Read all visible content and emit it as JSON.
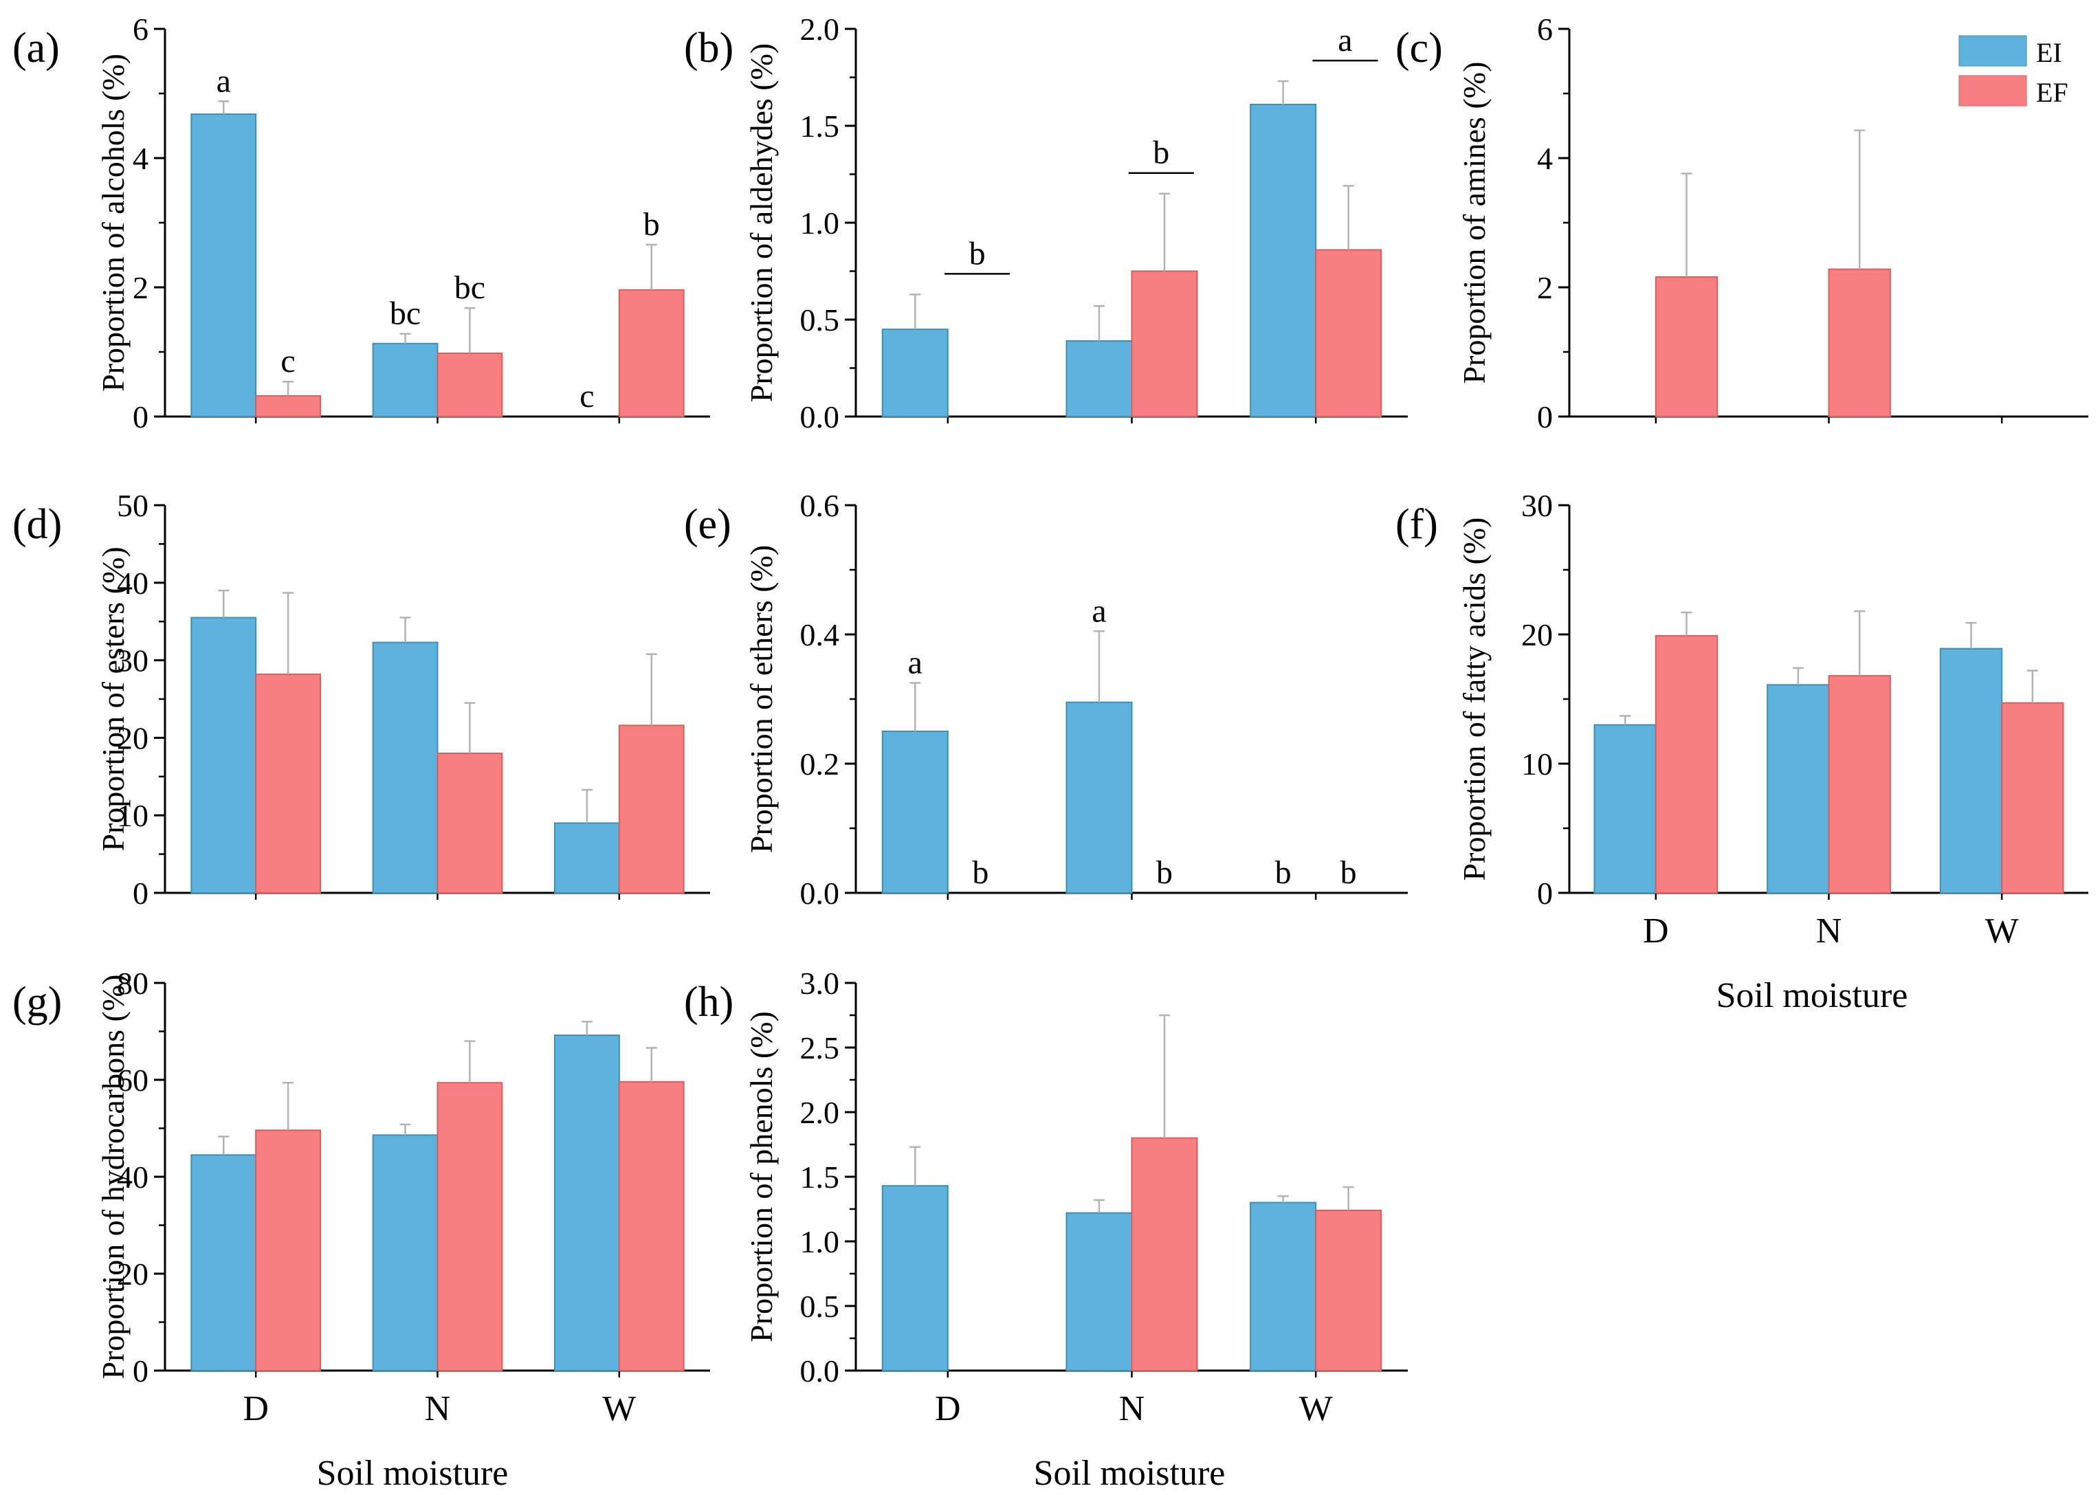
{
  "colors": {
    "EI": "#5db3de",
    "EF": "#f77f7f",
    "EI_stroke": "#3d8fb8",
    "EF_stroke": "#d85f5f",
    "error": "#b3b3b3"
  },
  "legend": [
    {
      "name": "EI",
      "color": "#5db3de"
    },
    {
      "name": "EF",
      "color": "#f77f7f"
    }
  ],
  "xlabel": "Soil moisture",
  "chart_data": [
    {
      "type": "bar",
      "panel": "(a)",
      "ylabel": "Proportion of alcohols (%)",
      "categories": [
        "D",
        "N",
        "W"
      ],
      "show_categories": false,
      "ylim": [
        0,
        6
      ],
      "yticks": [
        "0",
        "2",
        "4",
        "6"
      ],
      "series": [
        {
          "name": "EI",
          "values": [
            4.68,
            1.13,
            0
          ],
          "errors": [
            0.2,
            0.15,
            0
          ],
          "letters": [
            "a",
            "bc",
            "c"
          ]
        },
        {
          "name": "EF",
          "values": [
            0.32,
            0.98,
            1.96
          ],
          "errors": [
            0.22,
            0.7,
            0.7
          ],
          "letters": [
            "c",
            "bc",
            "b"
          ]
        }
      ]
    },
    {
      "type": "bar",
      "panel": "(b)",
      "ylabel": "Proportion of aldehydes (%)",
      "categories": [
        "D",
        "N",
        "W"
      ],
      "show_categories": false,
      "ylim": [
        0,
        2
      ],
      "yticks": [
        "0.0",
        "0.5",
        "1.0",
        "1.5",
        "2.0"
      ],
      "series": [
        {
          "name": "EI",
          "values": [
            0.45,
            0.39,
            1.61
          ],
          "errors": [
            0.18,
            0.18,
            0.12
          ]
        },
        {
          "name": "EF",
          "values": [
            0,
            0.75,
            0.86
          ],
          "errors": [
            0,
            0.4,
            0.33
          ]
        }
      ],
      "group_letters": [
        "b",
        "b",
        "a"
      ]
    },
    {
      "type": "bar",
      "panel": "(c)",
      "ylabel": "Proportion of amines (%)",
      "categories": [
        "D",
        "N",
        "W"
      ],
      "show_categories": false,
      "ylim": [
        0,
        6
      ],
      "yticks": [
        "0",
        "2",
        "4",
        "6"
      ],
      "series": [
        {
          "name": "EI",
          "values": [
            0,
            0,
            0
          ],
          "errors": [
            0,
            0,
            0
          ]
        },
        {
          "name": "EF",
          "values": [
            2.16,
            2.28,
            0
          ],
          "errors": [
            1.6,
            2.15,
            0
          ]
        }
      ]
    },
    {
      "type": "bar",
      "panel": "(d)",
      "ylabel": "Proportion of esters (%)",
      "categories": [
        "D",
        "N",
        "W"
      ],
      "show_categories": false,
      "ylim": [
        0,
        50
      ],
      "yticks": [
        "0",
        "10",
        "20",
        "30",
        "40",
        "50"
      ],
      "series": [
        {
          "name": "EI",
          "values": [
            35.5,
            32.3,
            9.0
          ],
          "errors": [
            3.5,
            3.2,
            4.3
          ]
        },
        {
          "name": "EF",
          "values": [
            28.2,
            18.0,
            21.6
          ],
          "errors": [
            10.5,
            6.5,
            9.2
          ]
        }
      ]
    },
    {
      "type": "bar",
      "panel": "(e)",
      "ylabel": "Proportion of ethers (%)",
      "categories": [
        "D",
        "N",
        "W"
      ],
      "show_categories": false,
      "ylim": [
        0,
        0.6
      ],
      "yticks": [
        "0.0",
        "0.2",
        "0.4",
        "0.6"
      ],
      "series": [
        {
          "name": "EI",
          "values": [
            0.25,
            0.295,
            0
          ],
          "errors": [
            0.075,
            0.11,
            0
          ],
          "letters": [
            "a",
            "a",
            "b"
          ]
        },
        {
          "name": "EF",
          "values": [
            0,
            0,
            0
          ],
          "errors": [
            0,
            0,
            0
          ],
          "letters": [
            "b",
            "b",
            "b"
          ]
        }
      ]
    },
    {
      "type": "bar",
      "panel": "(f)",
      "ylabel": "Proportion of fatty acids (%)",
      "categories": [
        "D",
        "N",
        "W"
      ],
      "show_categories": true,
      "ylim": [
        0,
        30
      ],
      "yticks": [
        "0",
        "10",
        "20",
        "30"
      ],
      "series": [
        {
          "name": "EI",
          "values": [
            13.0,
            16.1,
            18.9
          ],
          "errors": [
            0.7,
            1.3,
            2.0
          ]
        },
        {
          "name": "EF",
          "values": [
            19.9,
            16.8,
            14.7
          ],
          "errors": [
            1.8,
            5.0,
            2.5
          ]
        }
      ]
    },
    {
      "type": "bar",
      "panel": "(g)",
      "ylabel": "Proportion of hydrocarbons (%)",
      "categories": [
        "D",
        "N",
        "W"
      ],
      "show_categories": true,
      "ylim": [
        0,
        80
      ],
      "yticks": [
        "0",
        "20",
        "40",
        "60",
        "80"
      ],
      "series": [
        {
          "name": "EI",
          "values": [
            44.5,
            48.6,
            69.2
          ],
          "errors": [
            3.8,
            2.2,
            2.8
          ]
        },
        {
          "name": "EF",
          "values": [
            49.6,
            59.4,
            59.6
          ],
          "errors": [
            9.8,
            8.6,
            7.0
          ]
        }
      ]
    },
    {
      "type": "bar",
      "panel": "(h)",
      "ylabel": "Proportion of phenols (%)",
      "categories": [
        "D",
        "N",
        "W"
      ],
      "show_categories": true,
      "ylim": [
        0,
        3
      ],
      "yticks": [
        "0.0",
        "0.5",
        "1.0",
        "1.5",
        "2.0",
        "2.5",
        "3.0"
      ],
      "series": [
        {
          "name": "EI",
          "values": [
            1.43,
            1.22,
            1.3
          ],
          "errors": [
            0.3,
            0.1,
            0.05
          ]
        },
        {
          "name": "EF",
          "values": [
            0,
            1.8,
            1.24
          ],
          "errors": [
            0,
            0.95,
            0.18
          ]
        }
      ]
    }
  ]
}
